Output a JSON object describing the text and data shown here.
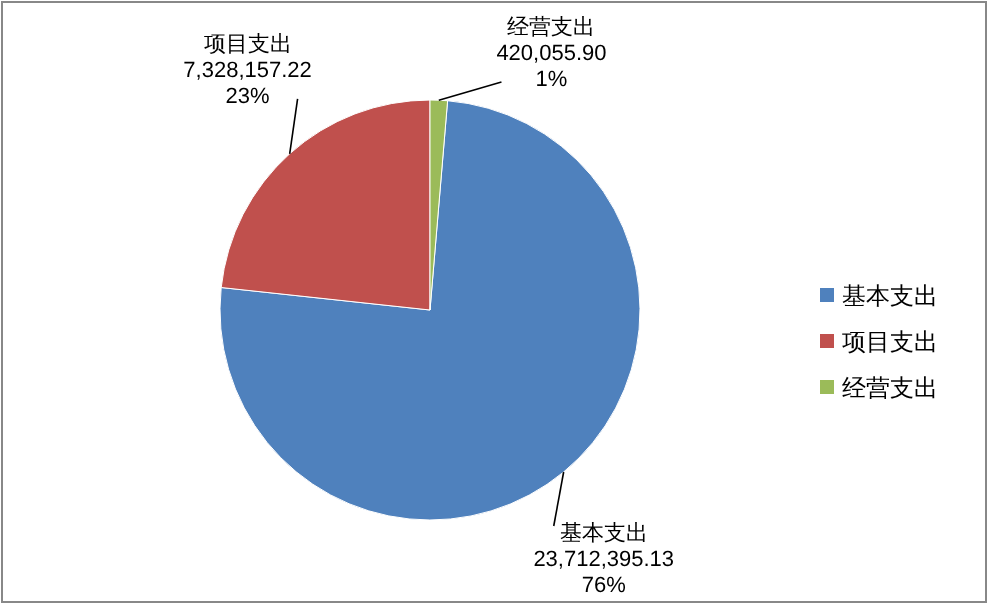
{
  "chart_data": {
    "type": "pie",
    "categories": [
      "基本支出",
      "项目支出",
      "经营支出"
    ],
    "values": [
      23712395.13,
      7328157.22,
      420055.9
    ],
    "colors": [
      "#4f81bd",
      "#c0504d",
      "#9bbb59"
    ],
    "value_labels": [
      "23,712,395.13\n76%",
      "7,328,157.22\n23%",
      "420,055.90\n1%"
    ],
    "legend": "right"
  }
}
